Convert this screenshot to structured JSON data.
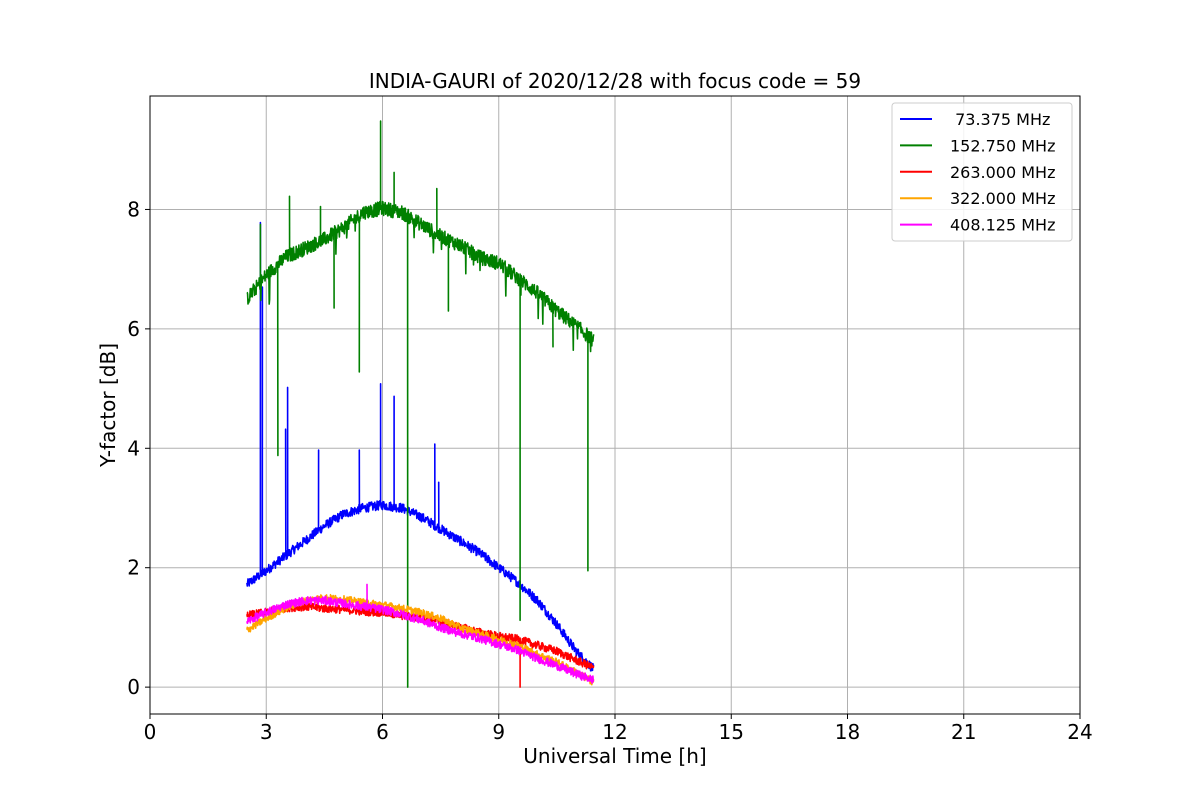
{
  "chart_data": {
    "type": "line",
    "title": "INDIA-GAURI of 2020/12/28 with focus code = 59",
    "xlabel": "Universal Time [h]",
    "ylabel": "Y-factor [dB]",
    "xlim": [
      0,
      24
    ],
    "ylim": [
      -0.45,
      9.9
    ],
    "xticks": [
      0,
      3,
      6,
      9,
      12,
      15,
      18,
      21,
      24
    ],
    "xtick_labels": [
      "0",
      "3",
      "6",
      "9",
      "12",
      "15",
      "18",
      "21",
      "24"
    ],
    "yticks": [
      0,
      2,
      4,
      6,
      8
    ],
    "ytick_labels": [
      "0",
      "2",
      "4",
      "6",
      "8"
    ],
    "grid": true,
    "legend_position": "top-right",
    "series": [
      {
        "name": " 73.375 MHz",
        "color": "#0000ff",
        "noise": 0.08,
        "points": [
          [
            2.5,
            1.72
          ],
          [
            3.0,
            1.95
          ],
          [
            3.5,
            2.2
          ],
          [
            4.0,
            2.45
          ],
          [
            4.5,
            2.7
          ],
          [
            5.0,
            2.9
          ],
          [
            5.5,
            3.0
          ],
          [
            6.0,
            3.05
          ],
          [
            6.5,
            3.0
          ],
          [
            7.0,
            2.85
          ],
          [
            7.5,
            2.65
          ],
          [
            8.0,
            2.45
          ],
          [
            8.5,
            2.25
          ],
          [
            9.0,
            2.0
          ],
          [
            9.5,
            1.75
          ],
          [
            10.0,
            1.45
          ],
          [
            10.5,
            1.05
          ],
          [
            11.0,
            0.6
          ],
          [
            11.45,
            0.3
          ]
        ],
        "spikes": [
          [
            2.85,
            7.78
          ],
          [
            2.9,
            6.7
          ],
          [
            3.5,
            4.32
          ],
          [
            3.55,
            5.02
          ],
          [
            4.35,
            3.97
          ],
          [
            5.4,
            3.97
          ],
          [
            5.95,
            5.08
          ],
          [
            6.3,
            4.87
          ],
          [
            7.35,
            4.07
          ],
          [
            7.45,
            3.43
          ]
        ]
      },
      {
        "name": "152.750 MHz",
        "color": "#008000",
        "noise": 0.12,
        "points": [
          [
            2.5,
            6.5
          ],
          [
            3.0,
            6.9
          ],
          [
            3.5,
            7.2
          ],
          [
            4.0,
            7.35
          ],
          [
            4.5,
            7.5
          ],
          [
            5.0,
            7.7
          ],
          [
            5.5,
            7.95
          ],
          [
            6.0,
            8.02
          ],
          [
            6.5,
            7.95
          ],
          [
            7.0,
            7.75
          ],
          [
            7.5,
            7.55
          ],
          [
            8.0,
            7.4
          ],
          [
            8.5,
            7.2
          ],
          [
            9.0,
            7.1
          ],
          [
            9.5,
            6.85
          ],
          [
            10.0,
            6.6
          ],
          [
            10.5,
            6.3
          ],
          [
            11.0,
            6.05
          ],
          [
            11.45,
            5.8
          ]
        ],
        "spikes": [
          [
            2.85,
            7.75
          ],
          [
            3.6,
            8.22
          ],
          [
            4.4,
            8.05
          ],
          [
            5.95,
            9.48
          ],
          [
            6.3,
            8.62
          ],
          [
            7.4,
            8.35
          ]
        ],
        "dips": [
          [
            3.3,
            3.88
          ],
          [
            4.75,
            6.35
          ],
          [
            5.4,
            5.28
          ],
          [
            6.65,
            0.0
          ],
          [
            7.7,
            6.3
          ],
          [
            9.55,
            1.12
          ],
          [
            10.4,
            5.7
          ],
          [
            11.3,
            1.95
          ]
        ]
      },
      {
        "name": "263.000 MHz",
        "color": "#ff0000",
        "noise": 0.07,
        "points": [
          [
            2.5,
            1.2
          ],
          [
            3.0,
            1.25
          ],
          [
            3.5,
            1.33
          ],
          [
            4.0,
            1.35
          ],
          [
            4.5,
            1.32
          ],
          [
            5.0,
            1.3
          ],
          [
            5.5,
            1.27
          ],
          [
            6.0,
            1.25
          ],
          [
            6.5,
            1.2
          ],
          [
            7.0,
            1.15
          ],
          [
            7.5,
            1.1
          ],
          [
            8.0,
            1.0
          ],
          [
            8.5,
            0.92
          ],
          [
            9.0,
            0.85
          ],
          [
            9.5,
            0.8
          ],
          [
            10.0,
            0.7
          ],
          [
            10.5,
            0.6
          ],
          [
            11.0,
            0.45
          ],
          [
            11.45,
            0.32
          ]
        ],
        "spikes": [],
        "dips": [
          [
            9.55,
            0.0
          ]
        ]
      },
      {
        "name": "322.000 MHz",
        "color": "#ffa500",
        "noise": 0.06,
        "points": [
          [
            2.5,
            0.95
          ],
          [
            3.0,
            1.15
          ],
          [
            3.5,
            1.32
          ],
          [
            4.0,
            1.45
          ],
          [
            4.5,
            1.5
          ],
          [
            5.0,
            1.47
          ],
          [
            5.5,
            1.42
          ],
          [
            6.0,
            1.38
          ],
          [
            6.5,
            1.32
          ],
          [
            7.0,
            1.25
          ],
          [
            7.5,
            1.15
          ],
          [
            8.0,
            1.0
          ],
          [
            8.5,
            0.9
          ],
          [
            9.0,
            0.8
          ],
          [
            9.5,
            0.7
          ],
          [
            10.0,
            0.55
          ],
          [
            10.5,
            0.42
          ],
          [
            11.0,
            0.25
          ],
          [
            11.45,
            0.08
          ]
        ],
        "spikes": [],
        "dips": []
      },
      {
        "name": "408.125 MHz",
        "color": "#ff00ff",
        "noise": 0.07,
        "points": [
          [
            2.5,
            1.1
          ],
          [
            3.0,
            1.25
          ],
          [
            3.5,
            1.38
          ],
          [
            4.0,
            1.45
          ],
          [
            4.5,
            1.45
          ],
          [
            5.0,
            1.4
          ],
          [
            5.5,
            1.35
          ],
          [
            6.0,
            1.3
          ],
          [
            6.5,
            1.22
          ],
          [
            7.0,
            1.12
          ],
          [
            7.5,
            1.0
          ],
          [
            8.0,
            0.9
          ],
          [
            8.5,
            0.82
          ],
          [
            9.0,
            0.72
          ],
          [
            9.5,
            0.62
          ],
          [
            10.0,
            0.48
          ],
          [
            10.5,
            0.36
          ],
          [
            11.0,
            0.22
          ],
          [
            11.45,
            0.12
          ]
        ],
        "spikes": [
          [
            5.6,
            1.72
          ]
        ],
        "dips": []
      }
    ]
  }
}
